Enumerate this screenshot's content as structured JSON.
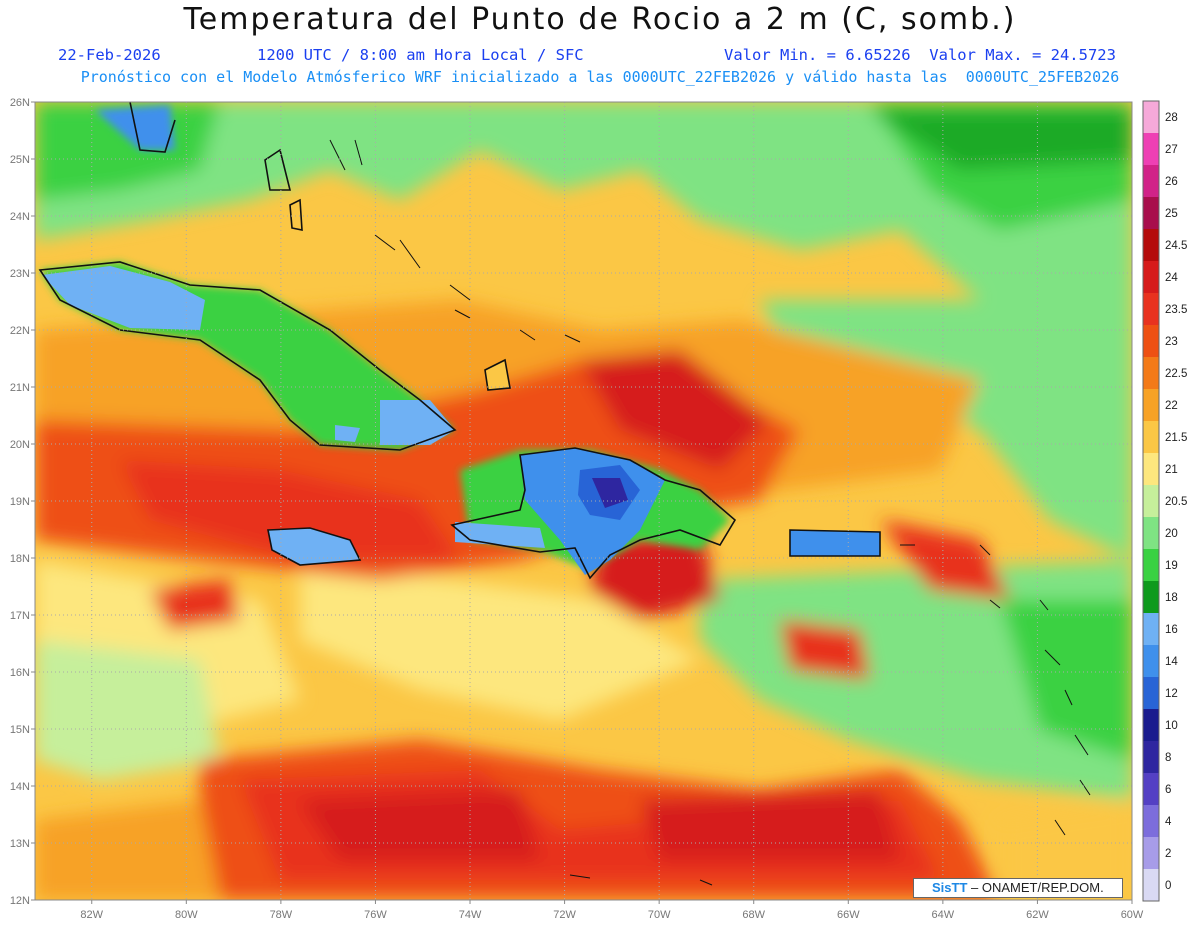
{
  "header": {
    "title": "Temperatura del Punto de Rocio a 2 m (C, somb.)",
    "date": "22-Feb-2026",
    "time": "1200 UTC / 8:00 am Hora Local / SFC",
    "minmax": "Valor Min. = 6.65226  Valor Max. = 24.5723",
    "model_info": "Pronóstico con el Modelo Atmósferico WRF inicializado a las 0000UTC_22FEB2026 y válido hasta las  0000UTC_25FEB2026"
  },
  "map": {
    "lon_labels": [
      "82W",
      "80W",
      "78W",
      "76W",
      "74W",
      "72W",
      "70W",
      "68W",
      "66W",
      "64W",
      "62W",
      "60W"
    ],
    "lat_labels": [
      "26N",
      "25N",
      "24N",
      "23N",
      "22N",
      "21N",
      "20N",
      "19N",
      "18N",
      "17N",
      "16N",
      "15N",
      "14N",
      "13N",
      "12N"
    ],
    "lon_range": [
      -83.2,
      -60
    ],
    "lat_range": [
      12,
      26
    ]
  },
  "colorbar": {
    "levels": [
      "28",
      "27",
      "26",
      "25",
      "24.5",
      "24",
      "23.5",
      "23",
      "22.5",
      "22",
      "21.5",
      "21",
      "20.5",
      "20",
      "19",
      "18",
      "16",
      "14",
      "12",
      "10",
      "8",
      "6",
      "4",
      "2",
      "0"
    ],
    "colors": [
      "#f6a9d9",
      "#ee40b4",
      "#d12288",
      "#a80e4c",
      "#b40b0b",
      "#d61b1b",
      "#e8321f",
      "#ee5013",
      "#f37a18",
      "#f7a226",
      "#fbc745",
      "#fde77e",
      "#c6ef9b",
      "#7fe383",
      "#3ad142",
      "#0e9a1d",
      "#6fb1f4",
      "#3f90ec",
      "#2864d6",
      "#1a1c8e",
      "#2e26a0",
      "#5440c4",
      "#7c6ddc",
      "#a79ce8",
      "#d9d9f3"
    ]
  },
  "credit": {
    "logo": "SisTT",
    "text": "– ONAMET/REP.DOM."
  }
}
